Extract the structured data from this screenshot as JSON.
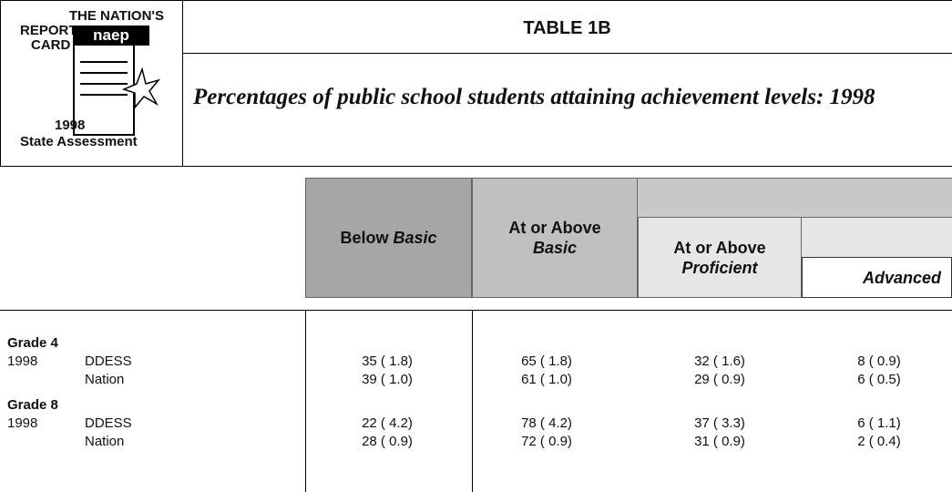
{
  "logo": {
    "line1": "THE NATION'S",
    "line2": "REPORT",
    "line3": "CARD",
    "mark": "naep",
    "year": "1998",
    "assessment": "State Assessment"
  },
  "header": {
    "title": "TABLE 1B",
    "subtitle": "Percentages of public school students attaining achievement levels: 1998"
  },
  "table": {
    "columns": [
      {
        "parts": [
          "Below ",
          "Basic"
        ]
      },
      {
        "parts": [
          "At or Above",
          "Basic"
        ]
      },
      {
        "parts": [
          "At or Above",
          "Proficient"
        ]
      },
      {
        "parts": [
          "Advanced"
        ]
      }
    ],
    "groups": [
      {
        "label": "Grade 4",
        "rows": [
          {
            "year": "1998",
            "name": "DDESS",
            "cells": [
              "35 ( 1.8)",
              "65 ( 1.8)",
              "32 ( 1.6)",
              "8 ( 0.9)"
            ]
          },
          {
            "name": "Nation",
            "cells": [
              "39 ( 1.0)",
              "61 ( 1.0)",
              "29 ( 0.9)",
              "6 ( 0.5)"
            ]
          }
        ]
      },
      {
        "label": "Grade 8",
        "rows": [
          {
            "year": "1998",
            "name": "DDESS",
            "cells": [
              "22 ( 4.2)",
              "78 ( 4.2)",
              "37 ( 3.3)",
              "6 ( 1.1)"
            ]
          },
          {
            "name": "Nation",
            "cells": [
              "28 ( 0.9)",
              "72 ( 0.9)",
              "31 ( 0.9)",
              "2 ( 0.4)"
            ]
          }
        ]
      }
    ]
  }
}
